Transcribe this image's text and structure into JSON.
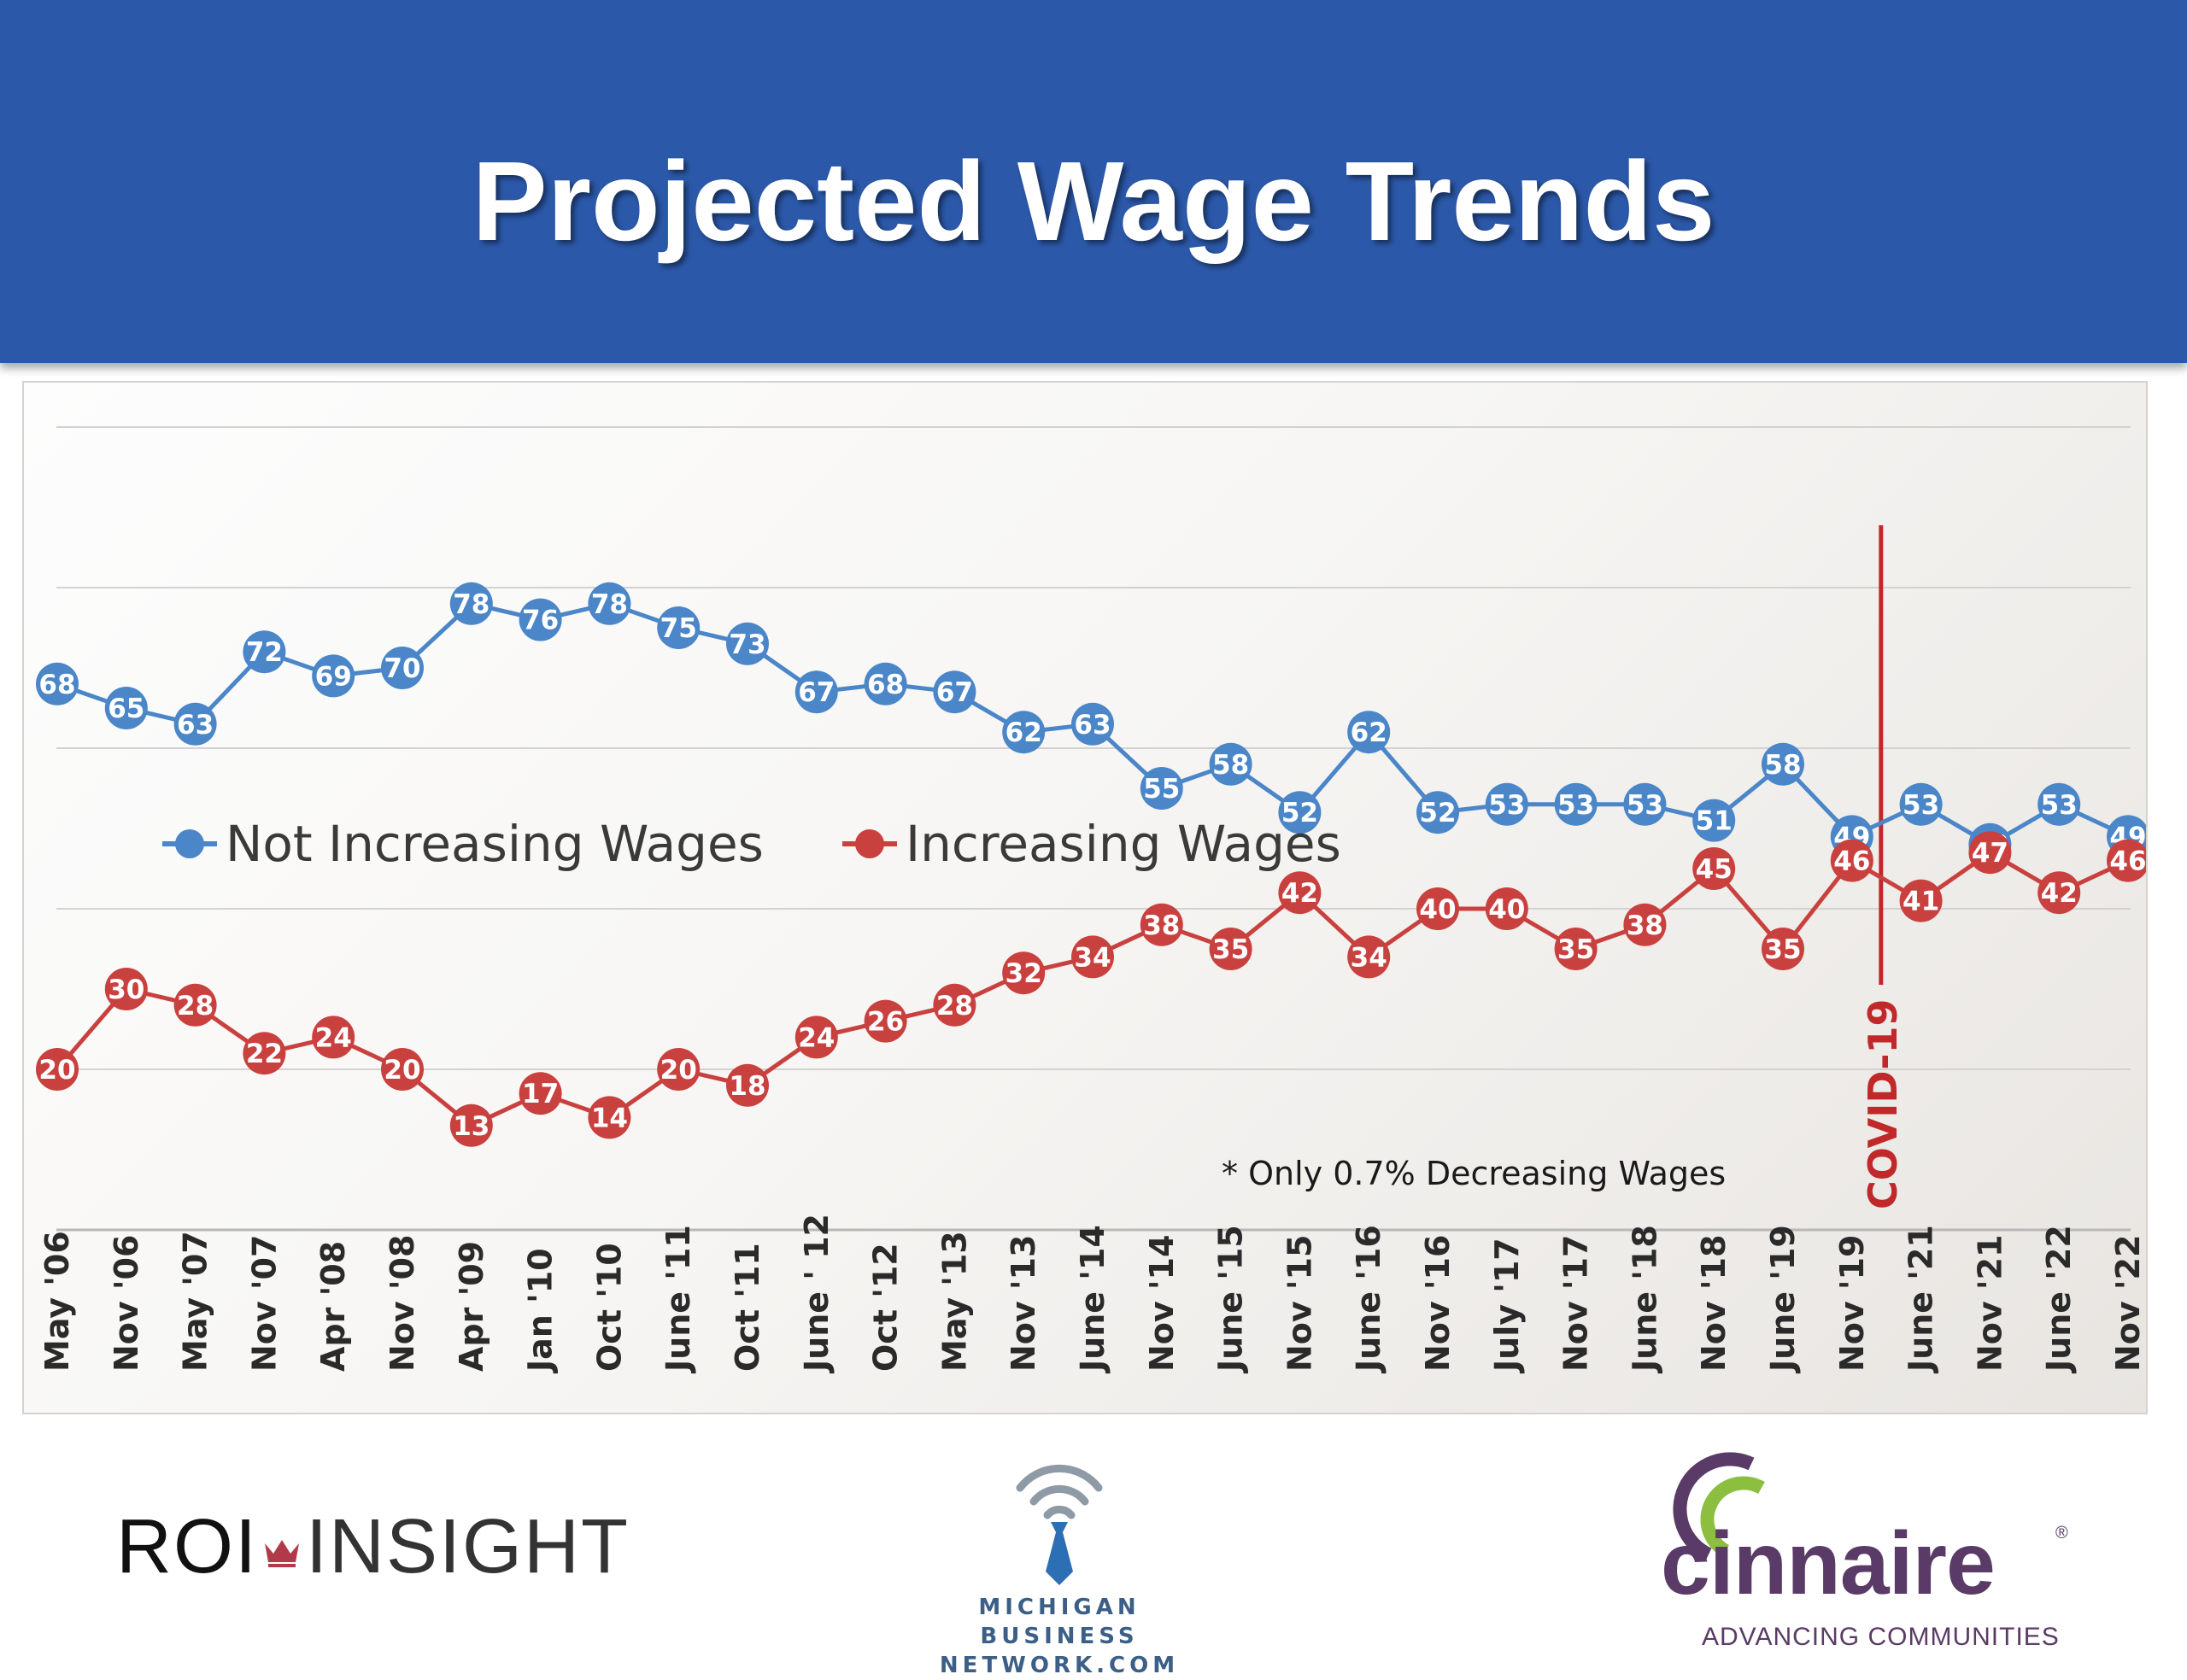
{
  "title": "Projected Wage Trends",
  "chart_data": {
    "type": "line",
    "categories": [
      "May '06",
      "Nov '06",
      "May '07",
      "Nov '07",
      "Apr '08",
      "Nov '08",
      "Apr '09",
      "Jan '10",
      "Oct '10",
      "June '11",
      "Oct '11",
      "June ' 12",
      "Oct '12",
      "May '13",
      "Nov '13",
      "June '14",
      "Nov '14",
      "June '15",
      "Nov '15",
      "June '16",
      "Nov '16",
      "July '17",
      "Nov '17",
      "June '18",
      "Nov '18",
      "June '19",
      "Nov '19",
      "June '21",
      "Nov '21",
      "June '22",
      "Nov '22"
    ],
    "series": [
      {
        "name": "Not Increasing Wages",
        "color": "#4a86c8",
        "values": [
          68,
          65,
          63,
          72,
          69,
          70,
          78,
          76,
          78,
          75,
          73,
          67,
          68,
          67,
          62,
          63,
          55,
          58,
          52,
          62,
          52,
          53,
          53,
          53,
          51,
          58,
          49,
          53,
          48,
          53,
          49
        ]
      },
      {
        "name": "Increasing Wages",
        "color": "#c9413f",
        "values": [
          20,
          30,
          28,
          22,
          24,
          20,
          13,
          17,
          14,
          20,
          18,
          24,
          26,
          28,
          32,
          34,
          38,
          35,
          42,
          34,
          40,
          40,
          35,
          38,
          45,
          35,
          46,
          41,
          47,
          42,
          46
        ]
      }
    ],
    "ylim": [
      0,
      100
    ],
    "gridlines": [
      0,
      20,
      40,
      60,
      80,
      100
    ],
    "legend": "middle-left",
    "annotations": {
      "note": "* Only 0.7% Decreasing Wages",
      "event_label": "COVID-19",
      "event_after_category": "Nov '19",
      "event_color": "#c0282a"
    }
  },
  "footer": {
    "roi_logo": {
      "left": "ROI",
      "right": "INSIGHT"
    },
    "mbn_logo": {
      "line1": "MICHIGAN BUSINESS",
      "line2": "NETWORK.COM"
    },
    "cinnaire_logo": {
      "name": "cinnaire",
      "tagline": "ADVANCING COMMUNITIES"
    }
  }
}
